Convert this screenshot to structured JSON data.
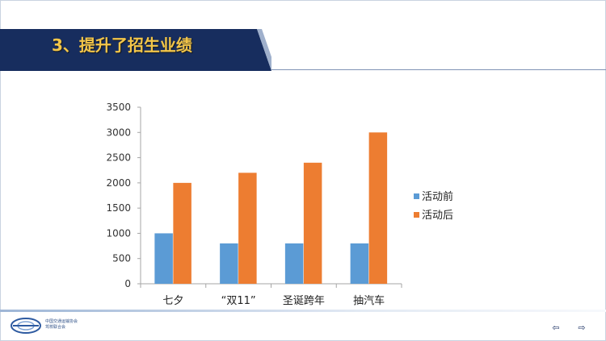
{
  "slide": {
    "title": "3、提升了招生业绩"
  },
  "footer": {
    "org_line1": "中国交通运输协会",
    "org_line2": "驾校联合会",
    "prev_icon": "prev-arrow-icon",
    "next_icon": "next-arrow-icon"
  },
  "colors": {
    "banner": "#172d5e",
    "title_text": "#f3c64a",
    "series_before": "#5b9bd5",
    "series_after": "#ed7d31"
  },
  "chart_data": {
    "type": "bar",
    "categories": [
      "七夕",
      "“双11”",
      "圣诞跨年",
      "抽汽车"
    ],
    "series": [
      {
        "name": "活动前",
        "values": [
          1000,
          800,
          800,
          800
        ],
        "color": "#5b9bd5"
      },
      {
        "name": "活动后",
        "values": [
          2000,
          2200,
          2400,
          3000
        ],
        "color": "#ed7d31"
      }
    ],
    "ylim": [
      0,
      3500
    ],
    "yticks": [
      "0",
      "500",
      "1000",
      "1500",
      "2000",
      "2500",
      "3000",
      "3500"
    ],
    "grid": false,
    "legend": "right",
    "title": "",
    "xlabel": "",
    "ylabel": ""
  }
}
